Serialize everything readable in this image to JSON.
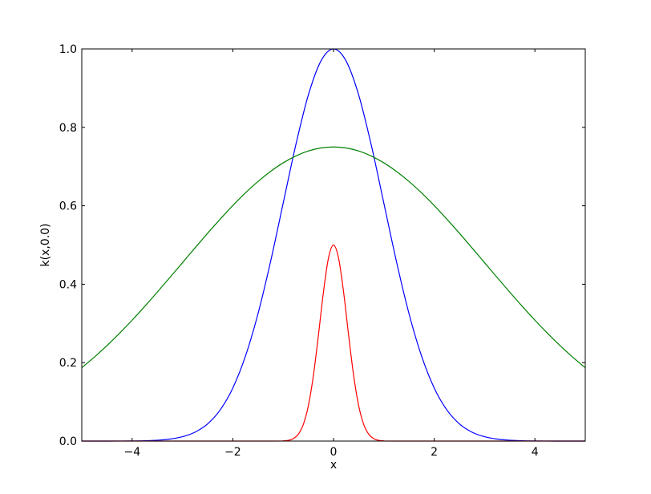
{
  "chart_data": {
    "type": "line",
    "title": "",
    "xlabel": "x",
    "ylabel": "k(x,0.0)",
    "xlim": [
      -5,
      5
    ],
    "ylim": [
      0,
      1.0
    ],
    "xticks": [
      -4,
      -2,
      0,
      2,
      4
    ],
    "xtick_labels": [
      "−4",
      "−2",
      "0",
      "2",
      "4"
    ],
    "yticks": [
      0,
      0.2,
      0.4,
      0.6,
      0.8,
      1.0
    ],
    "ytick_labels": [
      "0.0",
      "0.2",
      "0.4",
      "0.6",
      "0.8",
      "1.0"
    ],
    "grid": false,
    "legend": "none",
    "series": [
      {
        "color": "#0000ff",
        "x": [
          -5,
          -4.75,
          -4.5,
          -4.25,
          -4,
          -3.75,
          -3.5,
          -3.25,
          -3,
          -2.75,
          -2.5,
          -2.25,
          -2,
          -1.75,
          -1.5,
          -1.25,
          -1,
          -0.75,
          -0.5,
          -0.25,
          0,
          0.25,
          0.5,
          0.75,
          1,
          1.25,
          1.5,
          1.75,
          2,
          2.25,
          2.5,
          2.75,
          3,
          3.25,
          3.5,
          3.75,
          4,
          4.25,
          4.5,
          4.75,
          5
        ],
        "y": [
          0,
          0,
          0,
          0.0001,
          0.0003,
          0.0009,
          0.0022,
          0.0051,
          0.0111,
          0.0228,
          0.0439,
          0.0796,
          0.1353,
          0.2163,
          0.3247,
          0.4578,
          0.6065,
          0.7548,
          0.8825,
          0.9692,
          1.0,
          0.9692,
          0.8825,
          0.7548,
          0.6065,
          0.4578,
          0.3247,
          0.2163,
          0.1353,
          0.0796,
          0.0439,
          0.0228,
          0.0111,
          0.0051,
          0.0022,
          0.0009,
          0.0003,
          0.0001,
          0,
          0,
          0
        ]
      },
      {
        "color": "#008000",
        "x": [
          -5,
          -4.75,
          -4.5,
          -4.25,
          -4,
          -3.75,
          -3.5,
          -3.25,
          -3,
          -2.75,
          -2.5,
          -2.25,
          -2,
          -1.75,
          -1.5,
          -1.25,
          -1,
          -0.75,
          -0.5,
          -0.25,
          0,
          0.25,
          0.5,
          0.75,
          1,
          1.25,
          1.5,
          1.75,
          2,
          2.25,
          2.5,
          2.75,
          3,
          3.25,
          3.5,
          3.75,
          4,
          4.25,
          4.5,
          4.75,
          5
        ],
        "y": [
          0.187,
          0.2141,
          0.2435,
          0.275,
          0.3083,
          0.3434,
          0.3798,
          0.4171,
          0.4549,
          0.4927,
          0.53,
          0.5661,
          0.6006,
          0.6327,
          0.6619,
          0.6876,
          0.7095,
          0.7269,
          0.7397,
          0.7474,
          0.75,
          0.7474,
          0.7397,
          0.7269,
          0.7095,
          0.6876,
          0.6619,
          0.6327,
          0.6006,
          0.5661,
          0.53,
          0.4927,
          0.4549,
          0.4171,
          0.3798,
          0.3434,
          0.3083,
          0.275,
          0.2435,
          0.2141,
          0.187
        ]
      },
      {
        "color": "#ff0000",
        "x": [
          -5,
          -1.2,
          -1.0,
          -0.9,
          -0.8,
          -0.7,
          -0.6,
          -0.5,
          -0.4,
          -0.3,
          -0.2,
          -0.1,
          0,
          0.1,
          0.2,
          0.3,
          0.4,
          0.5,
          0.6,
          0.7,
          0.8,
          0.9,
          1.0,
          1.2,
          5
        ],
        "y": [
          0,
          0,
          0.0005,
          0.0019,
          0.0062,
          0.0174,
          0.0423,
          0.09,
          0.1669,
          0.2697,
          0.38,
          0.4668,
          0.5,
          0.4668,
          0.38,
          0.2697,
          0.1669,
          0.09,
          0.0423,
          0.0174,
          0.0062,
          0.0019,
          0.0005,
          0,
          0
        ]
      }
    ]
  }
}
